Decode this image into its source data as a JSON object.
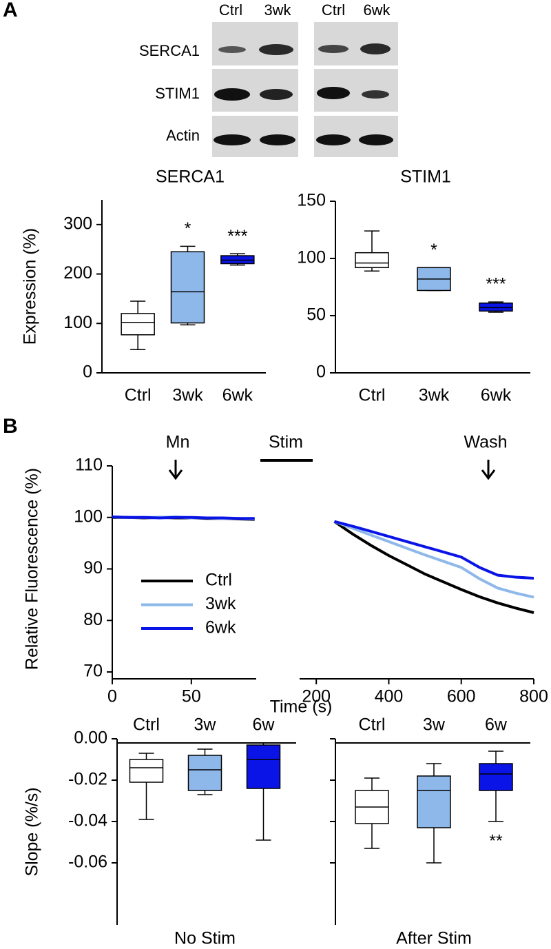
{
  "panel_labels": [
    "A",
    "B"
  ],
  "blot": {
    "lanes_left": [
      "Ctrl",
      "3wk"
    ],
    "lanes_right": [
      "Ctrl",
      "6wk"
    ],
    "rows": [
      "SERCA1",
      "STIM1",
      "Actin"
    ]
  },
  "chart_data": [
    {
      "type": "box",
      "title": "SERCA1",
      "ylabel": "Expression (%)",
      "categories": [
        "Ctrl",
        "3wk",
        "6wk"
      ],
      "colors": [
        "#ffffff",
        "#8fb8ea",
        "#0a14e6"
      ],
      "low": [
        47,
        97,
        218
      ],
      "q1": [
        77,
        101,
        221
      ],
      "median": [
        102,
        164,
        228
      ],
      "q3": [
        120,
        245,
        237
      ],
      "high": [
        145,
        256,
        241
      ],
      "significance": [
        null,
        "*",
        "***"
      ],
      "ylim": [
        0,
        350
      ],
      "yticks": [
        0,
        100,
        200,
        300
      ]
    },
    {
      "type": "box",
      "title": "STIM1",
      "categories": [
        "Ctrl",
        "3wk",
        "6wk"
      ],
      "colors": [
        "#ffffff",
        "#8fb8ea",
        "#0a14e6"
      ],
      "low": [
        89,
        72,
        53
      ],
      "q1": [
        92,
        72,
        54
      ],
      "median": [
        96,
        82,
        57
      ],
      "q3": [
        105,
        92,
        61
      ],
      "high": [
        124,
        92,
        62
      ],
      "significance": [
        null,
        "*",
        "***"
      ],
      "ylim": [
        0,
        150
      ],
      "yticks": [
        0,
        50,
        100,
        150
      ]
    },
    {
      "type": "line",
      "ylabel": "Relative Fluorescence (%)",
      "xlabel": "Time (s)",
      "annotations": [
        "Mn",
        "Stim",
        "Wash"
      ],
      "x": [
        0,
        10,
        20,
        30,
        40,
        50,
        60,
        70,
        80,
        90,
        250,
        300,
        350,
        400,
        450,
        500,
        550,
        600,
        650,
        700,
        750,
        800
      ],
      "series": [
        {
          "name": "Ctrl",
          "color": "#000000",
          "values": [
            100.0,
            100.0,
            99.9,
            100.0,
            99.9,
            99.9,
            99.8,
            99.8,
            99.7,
            99.6,
            99.2,
            96.8,
            94.6,
            92.6,
            90.8,
            89.0,
            87.5,
            86.0,
            84.6,
            83.4,
            82.4,
            81.5
          ]
        },
        {
          "name": "3wk",
          "color": "#8fb8ea",
          "values": [
            100.1,
            100.0,
            100.0,
            100.0,
            100.1,
            99.9,
            99.9,
            99.8,
            99.8,
            99.7,
            99.2,
            97.9,
            96.6,
            95.3,
            94.0,
            92.7,
            91.5,
            90.3,
            88.1,
            86.3,
            85.3,
            84.5
          ]
        },
        {
          "name": "6wk",
          "color": "#0a14e6",
          "values": [
            100.1,
            100.0,
            100.0,
            99.9,
            100.0,
            100.0,
            99.9,
            99.9,
            99.8,
            99.8,
            99.2,
            98.3,
            97.3,
            96.3,
            95.3,
            94.3,
            93.3,
            92.3,
            90.3,
            88.8,
            88.4,
            88.2
          ]
        }
      ],
      "xlim": [
        0,
        800
      ],
      "xbreak": [
        91,
        154
      ],
      "xticks": [
        0,
        50,
        200,
        400,
        600,
        800
      ],
      "ylim": [
        70,
        110
      ],
      "yticks": [
        70,
        80,
        90,
        100,
        110
      ]
    },
    {
      "type": "box",
      "ylabel": "Slope (%/s)",
      "xlabel": "No Stim",
      "xaxis_position": "top",
      "categories": [
        "Ctrl",
        "3w",
        "6w"
      ],
      "colors": [
        "#ffffff",
        "#8fb8ea",
        "#0a14e6"
      ],
      "low": [
        -0.039,
        -0.027,
        -0.049
      ],
      "q1": [
        -0.021,
        -0.025,
        -0.024
      ],
      "median": [
        -0.014,
        -0.015,
        -0.01
      ],
      "q3": [
        -0.01,
        -0.008,
        -0.003
      ],
      "high": [
        -0.007,
        -0.005,
        -0.002
      ],
      "ylim": [
        -0.09,
        0
      ],
      "yticks": [
        {
          "value": -0.06,
          "label": "-0.06"
        },
        {
          "value": -0.04,
          "label": "-0.04"
        },
        {
          "value": -0.02,
          "label": "-0.02"
        },
        {
          "value": 0,
          "label": "0.00"
        }
      ]
    },
    {
      "type": "box",
      "xlabel": "After Stim",
      "xaxis_position": "top",
      "ytick_labels": false,
      "categories": [
        "Ctrl",
        "3w",
        "6w"
      ],
      "colors": [
        "#ffffff",
        "#8fb8ea",
        "#0a14e6"
      ],
      "low": [
        -0.053,
        -0.06,
        -0.04
      ],
      "q1": [
        -0.041,
        -0.043,
        -0.025
      ],
      "median": [
        -0.033,
        -0.025,
        -0.017
      ],
      "q3": [
        -0.025,
        -0.018,
        -0.012
      ],
      "high": [
        -0.019,
        -0.012,
        -0.006
      ],
      "significance": [
        null,
        null,
        "**"
      ],
      "ylim": [
        -0.09,
        0
      ],
      "yticks": [
        -0.06,
        -0.04,
        -0.02,
        0
      ]
    }
  ]
}
